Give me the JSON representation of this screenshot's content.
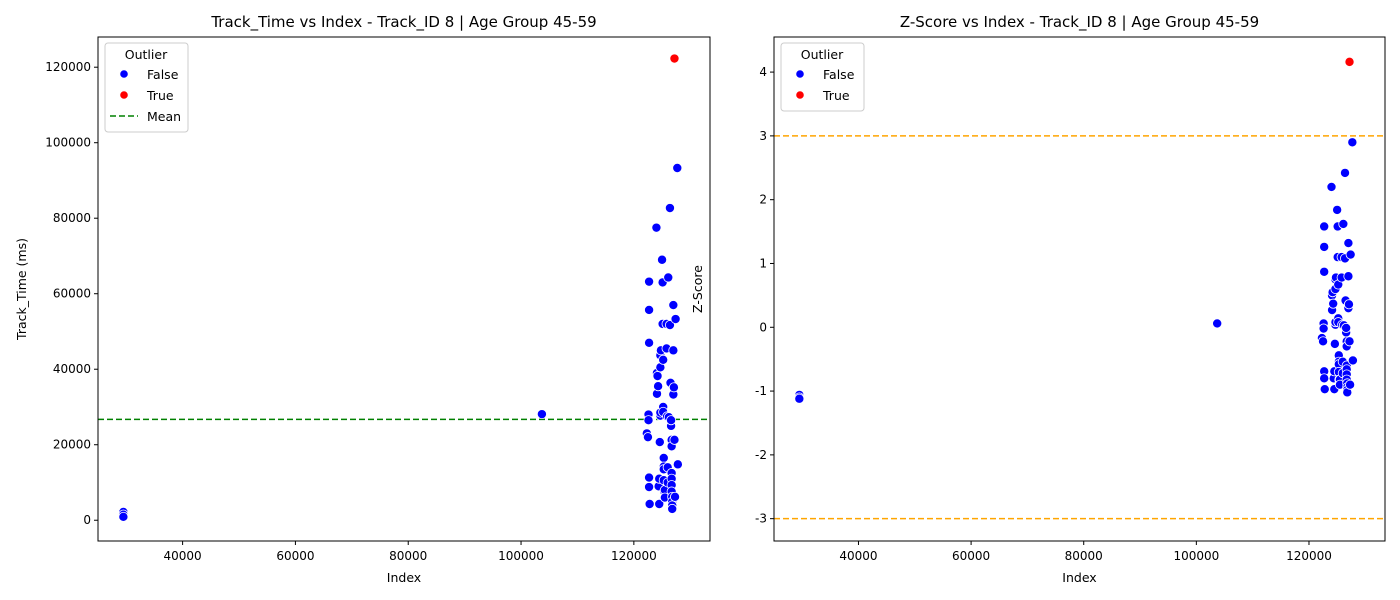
{
  "chart_data": [
    {
      "type": "scatter",
      "title": "Track_Time vs Index - Track_ID 8 | Age Group 45-59",
      "xlabel": "Index",
      "ylabel": "Track_Time (ms)",
      "xlim": [
        25000,
        133500
      ],
      "ylim": [
        -5500,
        128000
      ],
      "xticks": [
        40000,
        60000,
        80000,
        100000,
        120000
      ],
      "yticks": [
        0,
        20000,
        40000,
        60000,
        80000,
        100000,
        120000
      ],
      "legend": {
        "title": "Outlier",
        "position": "top-left",
        "entries": [
          {
            "label": "False",
            "kind": "marker",
            "color": "#0000ff"
          },
          {
            "label": "True",
            "kind": "marker",
            "color": "#ff0000"
          },
          {
            "label": "Mean",
            "kind": "dashed-line",
            "color": "#008000"
          }
        ]
      },
      "hlines": [
        {
          "y": 26700,
          "color": "#008000"
        }
      ],
      "series": [
        {
          "name": "False",
          "color": "#0000ff",
          "points": [
            [
              29500,
              2200
            ],
            [
              29500,
              1500
            ],
            [
              29500,
              900
            ],
            [
              103700,
              28100
            ],
            [
              122300,
              23000
            ],
            [
              122500,
              22000
            ],
            [
              122600,
              28000
            ],
            [
              122600,
              26500
            ],
            [
              122700,
              63200
            ],
            [
              122700,
              55700
            ],
            [
              122700,
              47000
            ],
            [
              122700,
              11300
            ],
            [
              122700,
              8800
            ],
            [
              122800,
              4300
            ],
            [
              124000,
              77500
            ],
            [
              124100,
              33500
            ],
            [
              124100,
              39000
            ],
            [
              124200,
              38200
            ],
            [
              124300,
              35500
            ],
            [
              124400,
              9000
            ],
            [
              124500,
              4300
            ],
            [
              124500,
              11000
            ],
            [
              124600,
              20700
            ],
            [
              124700,
              27700
            ],
            [
              124700,
              28500
            ],
            [
              124700,
              40500
            ],
            [
              124700,
              43700
            ],
            [
              124800,
              45000
            ],
            [
              125000,
              69000
            ],
            [
              125100,
              63000
            ],
            [
              125100,
              52000
            ],
            [
              125200,
              42500
            ],
            [
              125200,
              30000
            ],
            [
              125200,
              28700
            ],
            [
              125300,
              16500
            ],
            [
              125300,
              14200
            ],
            [
              125300,
              13500
            ],
            [
              125300,
              10600
            ],
            [
              125400,
              7600
            ],
            [
              125500,
              8000
            ],
            [
              125500,
              6000
            ],
            [
              125800,
              45500
            ],
            [
              125800,
              52000
            ],
            [
              125900,
              27500
            ],
            [
              126000,
              14000
            ],
            [
              126000,
              10000
            ],
            [
              126100,
              64300
            ],
            [
              126200,
              27300
            ],
            [
              126400,
              51700
            ],
            [
              126400,
              82700
            ],
            [
              126500,
              36400
            ],
            [
              126600,
              25000
            ],
            [
              126600,
              26500
            ],
            [
              126700,
              21300
            ],
            [
              126700,
              19600
            ],
            [
              126700,
              12500
            ],
            [
              126700,
              11000
            ],
            [
              126700,
              9300
            ],
            [
              126700,
              7600
            ],
            [
              126800,
              6200
            ],
            [
              126800,
              4900
            ],
            [
              126800,
              3900
            ],
            [
              126800,
              3000
            ],
            [
              127000,
              57000
            ],
            [
              127000,
              45000
            ],
            [
              127000,
              33300
            ],
            [
              127100,
              35200
            ],
            [
              127200,
              21300
            ],
            [
              127300,
              6200
            ],
            [
              127400,
              53300
            ],
            [
              127700,
              93300
            ],
            [
              127800,
              14800
            ]
          ]
        },
        {
          "name": "True",
          "color": "#ff0000",
          "points": [
            [
              127200,
              122300
            ]
          ]
        }
      ]
    },
    {
      "type": "scatter",
      "title": "Z-Score vs Index - Track_ID 8 | Age Group 45-59",
      "xlabel": "Index",
      "ylabel": "Z-Score",
      "xlim": [
        25000,
        133500
      ],
      "ylim": [
        -3.35,
        4.55
      ],
      "xticks": [
        40000,
        60000,
        80000,
        100000,
        120000
      ],
      "yticks": [
        -3,
        -2,
        -1,
        0,
        1,
        2,
        3,
        4
      ],
      "legend": {
        "title": "Outlier",
        "position": "top-left",
        "entries": [
          {
            "label": "False",
            "kind": "marker",
            "color": "#0000ff"
          },
          {
            "label": "True",
            "kind": "marker",
            "color": "#ff0000"
          }
        ]
      },
      "hlines": [
        {
          "y": 3,
          "color": "#ffa500"
        },
        {
          "y": -3,
          "color": "#ffa500"
        }
      ],
      "series": [
        {
          "name": "False",
          "color": "#0000ff",
          "points": [
            [
              29500,
              -1.06
            ],
            [
              29500,
              -1.1
            ],
            [
              29500,
              -1.12
            ],
            [
              103700,
              0.06
            ],
            [
              122300,
              -0.17
            ],
            [
              122500,
              -0.22
            ],
            [
              122600,
              0.06
            ],
            [
              122600,
              -0.02
            ],
            [
              122700,
              1.58
            ],
            [
              122700,
              1.26
            ],
            [
              122700,
              0.87
            ],
            [
              122700,
              -0.69
            ],
            [
              122700,
              -0.8
            ],
            [
              122800,
              -0.97
            ],
            [
              124000,
              2.2
            ],
            [
              124100,
              0.27
            ],
            [
              124100,
              0.5
            ],
            [
              124200,
              0.55
            ],
            [
              124300,
              0.37
            ],
            [
              124400,
              -0.8
            ],
            [
              124500,
              -0.97
            ],
            [
              124500,
              -0.69
            ],
            [
              124600,
              -0.26
            ],
            [
              124700,
              0.04
            ],
            [
              124700,
              0.08
            ],
            [
              124700,
              0.6
            ],
            [
              124700,
              0.75
            ],
            [
              124800,
              0.78
            ],
            [
              125000,
              1.84
            ],
            [
              125100,
              1.58
            ],
            [
              125100,
              1.1
            ],
            [
              125200,
              0.67
            ],
            [
              125200,
              0.14
            ],
            [
              125200,
              0.08
            ],
            [
              125300,
              -0.44
            ],
            [
              125300,
              -0.54
            ],
            [
              125300,
              -0.58
            ],
            [
              125300,
              -0.7
            ],
            [
              125400,
              -0.82
            ],
            [
              125500,
              -0.82
            ],
            [
              125500,
              -0.9
            ],
            [
              125800,
              0.78
            ],
            [
              125800,
              1.1
            ],
            [
              125900,
              0.04
            ],
            [
              126000,
              -0.54
            ],
            [
              126000,
              -0.72
            ],
            [
              126100,
              1.62
            ],
            [
              126200,
              0.03
            ],
            [
              126400,
              1.08
            ],
            [
              126400,
              2.42
            ],
            [
              126500,
              0.42
            ],
            [
              126600,
              -0.08
            ],
            [
              126600,
              -0.01
            ],
            [
              126700,
              -0.22
            ],
            [
              126700,
              -0.3
            ],
            [
              126700,
              -0.6
            ],
            [
              126700,
              -0.66
            ],
            [
              126700,
              -0.74
            ],
            [
              126700,
              -0.82
            ],
            [
              126800,
              -0.88
            ],
            [
              126800,
              -0.94
            ],
            [
              126800,
              -0.98
            ],
            [
              126800,
              -1.02
            ],
            [
              127000,
              1.32
            ],
            [
              127000,
              0.8
            ],
            [
              127000,
              0.3
            ],
            [
              127100,
              0.36
            ],
            [
              127200,
              -0.22
            ],
            [
              127300,
              -0.9
            ],
            [
              127400,
              1.14
            ],
            [
              127700,
              2.9
            ],
            [
              127800,
              -0.52
            ]
          ]
        },
        {
          "name": "True",
          "color": "#ff0000",
          "points": [
            [
              127200,
              4.16
            ]
          ]
        }
      ]
    }
  ]
}
